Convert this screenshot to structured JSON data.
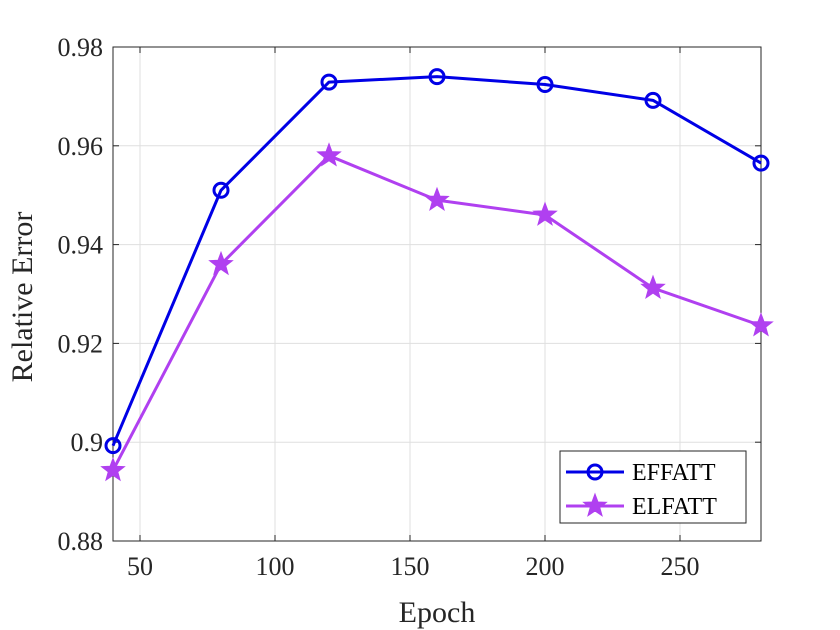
{
  "chart_data": {
    "type": "line",
    "xlabel": "Epoch",
    "ylabel": "Relative Error",
    "xlim": [
      40,
      280
    ],
    "ylim": [
      0.88,
      0.98
    ],
    "x_ticks": [
      50,
      100,
      150,
      200,
      250
    ],
    "x_tick_labels": [
      "50",
      "100",
      "150",
      "200",
      "250"
    ],
    "y_ticks": [
      0.88,
      0.9,
      0.92,
      0.94,
      0.96,
      0.98
    ],
    "y_tick_labels": [
      "0.88",
      "0.9",
      "0.92",
      "0.94",
      "0.96",
      "0.98"
    ],
    "grid": true,
    "legend_position": "bottom-right",
    "x": [
      40,
      80,
      120,
      160,
      200,
      240,
      280
    ],
    "series": [
      {
        "name": "EFFATT",
        "color": "#0000e6",
        "marker": "circle",
        "values": [
          0.8993,
          0.951,
          0.9729,
          0.974,
          0.9724,
          0.9692,
          0.9565
        ]
      },
      {
        "name": "ELFATT",
        "color": "#b040f0",
        "marker": "star",
        "values": [
          0.8943,
          0.936,
          0.958,
          0.949,
          0.946,
          0.9312,
          0.9236
        ]
      }
    ]
  }
}
